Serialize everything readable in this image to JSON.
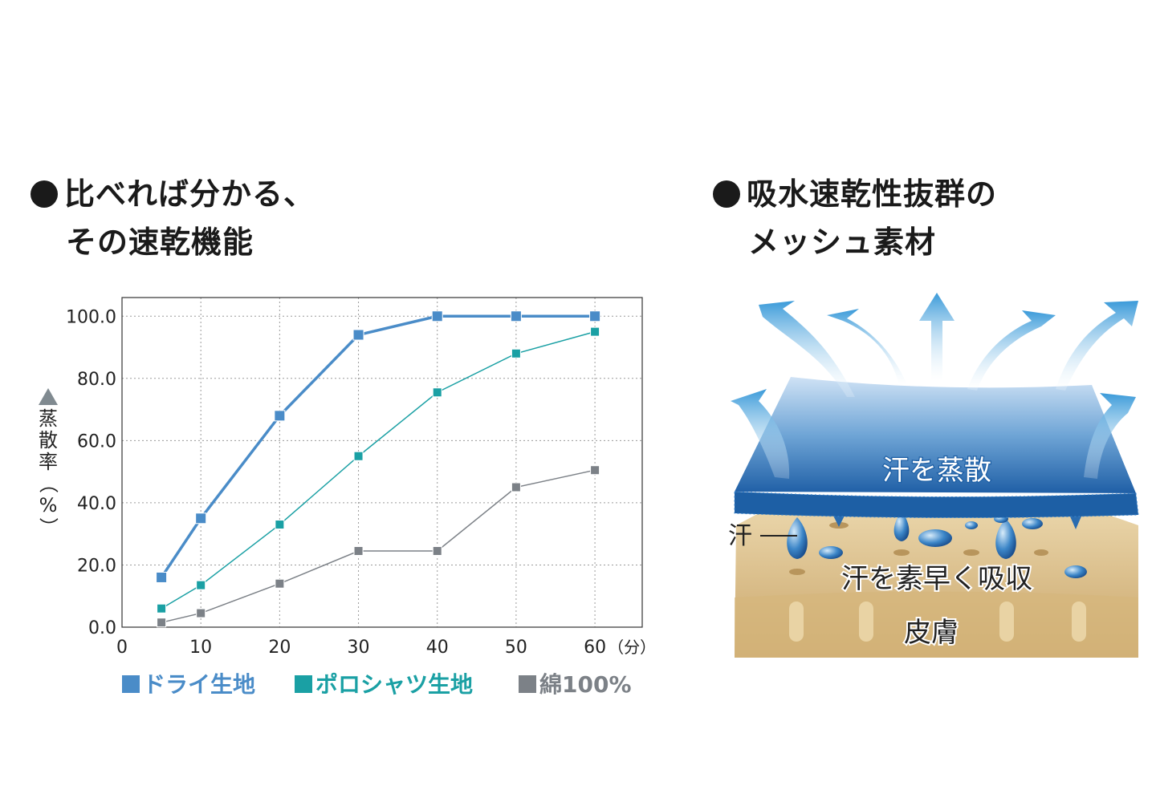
{
  "headings": {
    "left": {
      "line1": "比べれば分かる、",
      "line2": "その速乾機能"
    },
    "right": {
      "line1": "吸水速乾性抜群の",
      "line2": "メッシュ素材"
    }
  },
  "chart_data": {
    "type": "line",
    "x": [
      5,
      10,
      20,
      30,
      40,
      50,
      60
    ],
    "xlim": [
      0,
      66
    ],
    "ylim": [
      0,
      106
    ],
    "x_ticks": [
      "0",
      "10",
      "20",
      "30",
      "40",
      "50",
      "60"
    ],
    "x_unit": "（分）",
    "y_ticks": [
      "0.0",
      "20.0",
      "40.0",
      "60.0",
      "80.0",
      "100.0"
    ],
    "ylabel": "蒸散率（%）",
    "grid": true,
    "legend": "bottom",
    "series": [
      {
        "name": "ドライ生地",
        "color": "#4a8cc8",
        "values": [
          16,
          35,
          68,
          94,
          100,
          100,
          100
        ]
      },
      {
        "name": "ポロシャツ生地",
        "color": "#1aa0a4",
        "values": [
          6,
          13.5,
          33,
          55,
          75.5,
          88,
          95
        ]
      },
      {
        "name": "綿100%",
        "color": "#7c8187",
        "values": [
          1.5,
          4.5,
          14,
          24.5,
          24.5,
          45,
          50.5
        ]
      }
    ]
  },
  "illustration": {
    "label_evaporate": "汗を蒸散",
    "label_absorb": "汗を素早く吸収",
    "label_skin": "皮膚",
    "label_sweat": "汗"
  }
}
